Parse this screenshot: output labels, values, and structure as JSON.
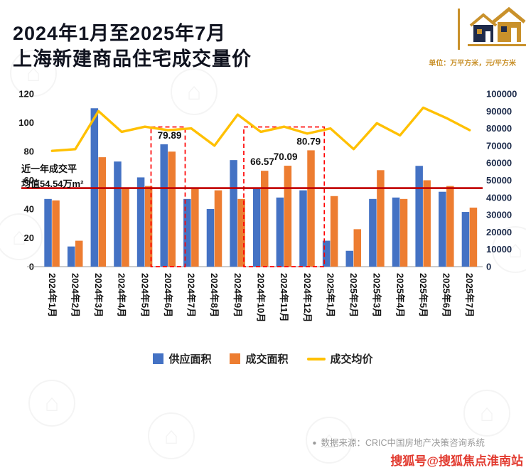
{
  "header": {
    "title_line1": "2024年1月至2025年7月",
    "title_line2": "上海新建商品住宅成交量价",
    "unit_note": "单位：万平方米，元/平方米"
  },
  "annotation": {
    "line1": "近一年成交平",
    "line2": "均值54.54万m²",
    "avg_value": 54.54
  },
  "chart_data": {
    "type": "bar",
    "subtype": "grouped bars with overlaid line",
    "categories": [
      "2024年1月",
      "2024年2月",
      "2024年3月",
      "2024年4月",
      "2024年5月",
      "2024年6月",
      "2024年7月",
      "2024年8月",
      "2024年9月",
      "2024年10月",
      "2024年11月",
      "2024年12月",
      "2025年1月",
      "2025年2月",
      "2025年3月",
      "2025年4月",
      "2025年5月",
      "2025年6月",
      "2025年7月"
    ],
    "series": [
      {
        "name": "供应面积",
        "type": "bar",
        "axis": "left",
        "color": "#4472C4",
        "values": [
          47,
          14,
          110,
          73,
          62,
          85,
          47,
          40,
          74,
          54,
          48,
          53,
          18,
          11,
          47,
          48,
          70,
          52,
          38
        ]
      },
      {
        "name": "成交面积",
        "type": "bar",
        "axis": "left",
        "color": "#ED7D31",
        "values": [
          46,
          18,
          76,
          55,
          56,
          79.89,
          54,
          53,
          47,
          66.57,
          70.09,
          80.79,
          49,
          26,
          67,
          47,
          60,
          56,
          41
        ]
      },
      {
        "name": "成交均价",
        "type": "line",
        "axis": "right",
        "color": "#FFC000",
        "values": [
          67000,
          68000,
          90000,
          78000,
          81000,
          79000,
          80000,
          70000,
          88000,
          78000,
          81000,
          77000,
          80000,
          68000,
          83000,
          76000,
          92000,
          86000,
          79000
        ]
      }
    ],
    "left_axis": {
      "min": 0,
      "max": 120,
      "step": 20
    },
    "right_axis": {
      "min": 0,
      "max": 100000,
      "step": 10000
    },
    "avg_line": {
      "value": 54.54,
      "color": "#C00000"
    },
    "data_labels": [
      {
        "category_index": 5,
        "text": "79.89"
      },
      {
        "category_index": 9,
        "text": "66.57"
      },
      {
        "category_index": 10,
        "text": "70.09"
      },
      {
        "category_index": 11,
        "text": "80.79"
      }
    ],
    "highlight_boxes": [
      {
        "from_index": 5,
        "to_index": 5,
        "top_value": 97,
        "color": "#FF0000"
      },
      {
        "from_index": 9,
        "to_index": 11,
        "top_value": 97,
        "color": "#FF0000"
      }
    ],
    "legend": [
      {
        "label": "供应面积",
        "color": "#4472C4",
        "marker": "square"
      },
      {
        "label": "成交面积",
        "color": "#ED7D31",
        "marker": "square"
      },
      {
        "label": "成交均价",
        "color": "#FFC000",
        "marker": "line"
      }
    ]
  },
  "footer": {
    "source_bullet": "●",
    "source": "数据来源：CRIC中国房地产决策咨询系统",
    "watermark": "搜狐号@搜狐焦点淮南站"
  }
}
